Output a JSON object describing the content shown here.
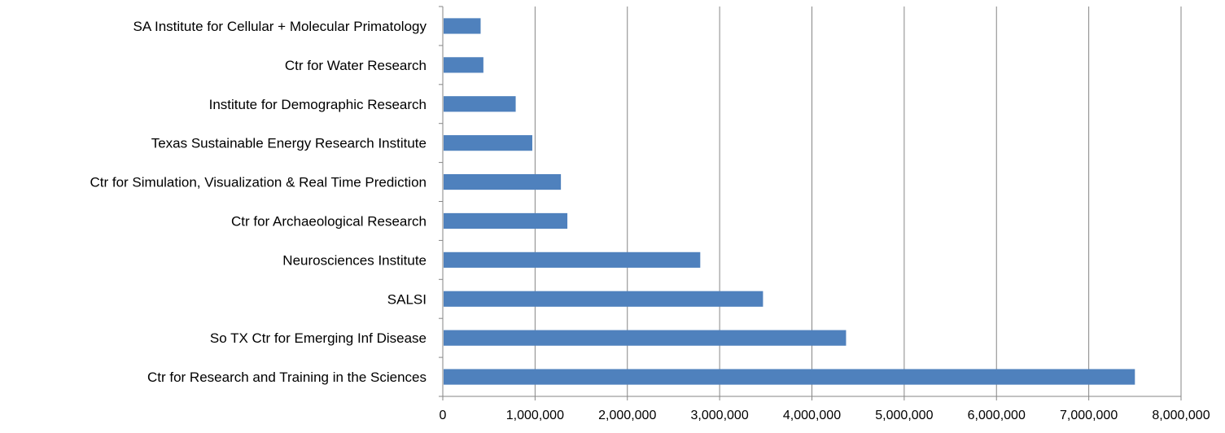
{
  "chart_data": {
    "type": "bar",
    "orientation": "horizontal",
    "title": "",
    "xlabel": "",
    "ylabel": "",
    "categories": [
      "Ctr for Research and Training in the Sciences",
      "So TX Ctr for Emerging Inf Disease",
      "SALSI",
      "Neurosciences Institute",
      "Ctr for Archaeological Research",
      "Ctr for Simulation, Visualization & Real Time Prediction",
      "Texas Sustainable Energy Research Institute",
      "Institute for Demographic Research",
      "Ctr for Water Research",
      "SA Institute for Cellular + Molecular Primatology"
    ],
    "values": [
      7500000,
      4370000,
      3470000,
      2790000,
      1350000,
      1280000,
      970000,
      790000,
      440000,
      410000
    ],
    "xlim": [
      0,
      8000000
    ],
    "x_ticks": [
      0,
      1000000,
      2000000,
      3000000,
      4000000,
      5000000,
      6000000,
      7000000,
      8000000
    ],
    "x_tick_labels": [
      "0",
      "1,000,000",
      "2,000,000",
      "3,000,000",
      "4,000,000",
      "5,000,000",
      "6,000,000",
      "7,000,000",
      "8,000,000"
    ],
    "grid": "vertical major gridlines",
    "legend": "none",
    "bar_color": "#4f81bd",
    "gridline_color": "#868686",
    "axis_color": "#868686"
  }
}
